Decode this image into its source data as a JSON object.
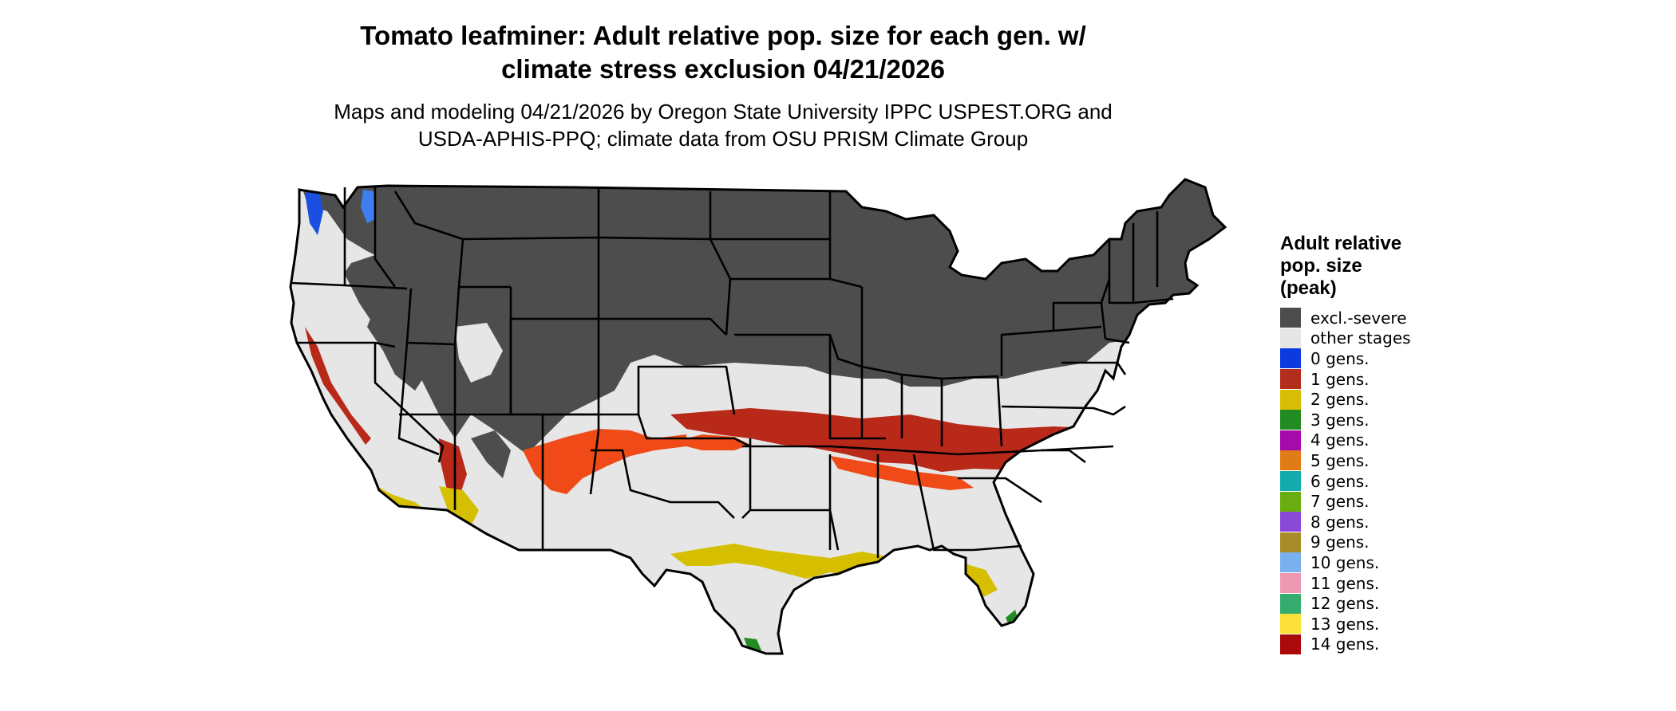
{
  "title": {
    "line1": "Tomato leafminer: Adult relative pop. size for each gen. w/",
    "line2": "climate stress exclusion 04/21/2026"
  },
  "subtitle": {
    "line1": "Maps and modeling 04/21/2026 by Oregon State University IPPC USPEST.ORG and",
    "line2": "USDA-APHIS-PPQ; climate data from OSU PRISM Climate Group"
  },
  "map": {
    "region": "Contiguous United States",
    "colors": {
      "excluded": "#4d4d4d",
      "other": "#e6e6e6",
      "gen0": "#1a3fd6",
      "gen1": "#b8291a",
      "gen1_light": "#ef4a17",
      "gen2": "#d6bf00",
      "gen3": "#228b22",
      "border": "#000000"
    }
  },
  "legend": {
    "title_lines": [
      "Adult relative",
      "pop. size",
      "(peak)"
    ],
    "items": [
      {
        "label": "excl.-severe",
        "color": "#4d4d4d"
      },
      {
        "label": "other stages",
        "color": "#e6e6e6"
      },
      {
        "label": "0 gens.",
        "color": "#0a3ae0"
      },
      {
        "label": "1 gens.",
        "color": "#b22d1c"
      },
      {
        "label": "2 gens.",
        "color": "#d9bd05"
      },
      {
        "label": "3 gens.",
        "color": "#228b22"
      },
      {
        "label": "4 gens.",
        "color": "#a50bab"
      },
      {
        "label": "5 gens.",
        "color": "#e07b16"
      },
      {
        "label": "6 gens.",
        "color": "#13abab"
      },
      {
        "label": "7 gens.",
        "color": "#6aad11"
      },
      {
        "label": "8 gens.",
        "color": "#8b49d8"
      },
      {
        "label": "9 gens.",
        "color": "#a88c27"
      },
      {
        "label": "10 gens.",
        "color": "#7aaff0"
      },
      {
        "label": "11 gens.",
        "color": "#ee99b1"
      },
      {
        "label": "12 gens.",
        "color": "#35ac6e"
      },
      {
        "label": "13 gens.",
        "color": "#fde13a"
      },
      {
        "label": "14 gens.",
        "color": "#aa0a0a"
      }
    ]
  }
}
